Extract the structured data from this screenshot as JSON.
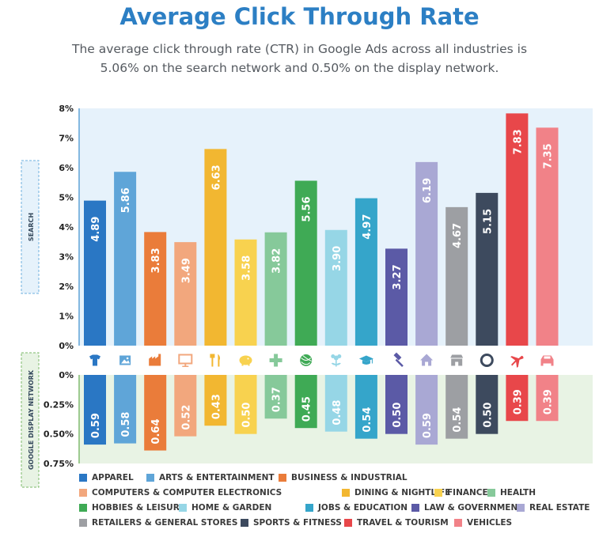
{
  "title": "Average Click Through Rate",
  "subtitle": "The average click through rate (CTR) in Google Ads across all industries is 5.06% on the search network and 0.50% on the display network.",
  "chart_data": {
    "type": "bar",
    "categories": [
      "APPAREL",
      "ARTS & ENTERTAINMENT",
      "BUSINESS & INDUSTRIAL",
      "COMPUTERS & COMPUTER ELECTRONICS",
      "DINING & NIGHTLIFE",
      "FINANCE",
      "HEALTH",
      "HOBBIES & LEISURE",
      "HOME & GARDEN",
      "JOBS & EDUCATION",
      "LAW & GOVERNMENT",
      "REAL ESTATE",
      "RETAILERS & GENERAL STORES",
      "SPORTS & FITNESS",
      "TRAVEL & TOURISM",
      "VEHICLES"
    ],
    "colors": [
      "#2a77c4",
      "#5fa5d8",
      "#ea7c3a",
      "#f2a77d",
      "#f2b731",
      "#f8d24f",
      "#86c99a",
      "#3faa55",
      "#96d6e6",
      "#35a5ca",
      "#5b5aa6",
      "#a9a8d4",
      "#9d9fa3",
      "#3d4a5e",
      "#e8474a",
      "#f18288"
    ],
    "icons": [
      "tshirt-icon",
      "picture-icon",
      "factory-icon",
      "monitor-icon",
      "utensils-icon",
      "piggy-bank-icon",
      "cross-icon",
      "yarn-icon",
      "flower-icon",
      "graduation-cap-icon",
      "gavel-icon",
      "house-icon",
      "store-icon",
      "stopwatch-icon",
      "airplane-icon",
      "car-icon"
    ],
    "search": {
      "name": "SEARCH",
      "values": [
        4.89,
        5.86,
        3.83,
        3.49,
        6.63,
        3.58,
        3.82,
        5.56,
        3.9,
        4.97,
        3.27,
        6.19,
        4.67,
        5.15,
        7.83,
        7.35
      ],
      "labels": [
        "4.89",
        "5.86",
        "3.83",
        "3.49",
        "6.63",
        "3.58",
        "3.82",
        "5.56",
        "3.90",
        "4.97",
        "3.27",
        "6.19",
        "4.67",
        "5.15",
        "7.83",
        "7.35"
      ],
      "ylim": [
        0,
        8
      ],
      "ticks": [
        "0%",
        "1%",
        "2%",
        "3%",
        "4%",
        "5%",
        "6%",
        "7%",
        "8%"
      ]
    },
    "display": {
      "name": "GOOGLE DISPLAY NETWORK",
      "values": [
        0.59,
        0.58,
        0.64,
        0.52,
        0.43,
        0.5,
        0.37,
        0.45,
        0.48,
        0.54,
        0.5,
        0.59,
        0.54,
        0.5,
        0.39,
        0.39
      ],
      "labels": [
        "0.59",
        "0.58",
        "0.64",
        "0.52",
        "0.43",
        "0.50",
        "0.37",
        "0.45",
        "0.48",
        "0.54",
        "0.50",
        "0.59",
        "0.54",
        "0.50",
        "0.39",
        "0.39"
      ],
      "ylim": [
        0,
        0.75
      ],
      "ticks": [
        "0%",
        "0.25%",
        "0.50%",
        "0.75%"
      ]
    },
    "grid": false,
    "legend_position": "bottom"
  }
}
